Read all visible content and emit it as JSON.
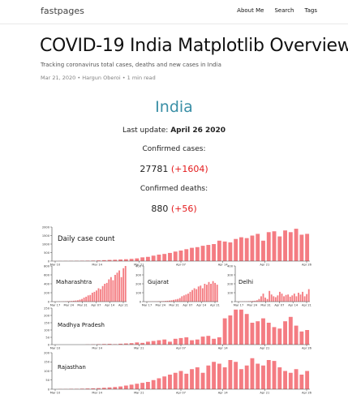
{
  "header": {
    "site_title": "fastpages",
    "nav": [
      "About Me",
      "Search",
      "Tags"
    ]
  },
  "post": {
    "title": "COVID-19 India Matplotlib Overview",
    "description": "Tracking coronavirus total cases, deaths and new cases in India",
    "meta": "Mar 21, 2020 • Hargun Oberoi • 1 min read"
  },
  "summary": {
    "country": "India",
    "last_update_label": "Last update:",
    "last_update_value": "April 26 2020",
    "confirmed_label": "Confirmed cases:",
    "confirmed_value": "27781",
    "confirmed_new": "(+1604)",
    "deaths_label": "Confirmed deaths:",
    "deaths_value": "880",
    "deaths_new": "(+56)"
  },
  "colors": {
    "bar": "#f47c82",
    "accent": "#3a8fa6",
    "new_value": "#e41a1c"
  },
  "chart_data": [
    {
      "type": "bar",
      "title": "Daily case count",
      "x_ticks": [
        "Mar 10",
        "Mar 14",
        "Mar 21",
        "Apr 07",
        "Apr 14",
        "Apr 21",
        "Apr 26"
      ],
      "y_ticks": [
        "0",
        "500",
        "1000",
        "1500",
        "2000"
      ],
      "ylim": [
        0,
        2000
      ],
      "values": [
        5,
        8,
        10,
        12,
        15,
        20,
        25,
        30,
        40,
        55,
        70,
        80,
        95,
        110,
        130,
        160,
        220,
        250,
        320,
        380,
        420,
        480,
        560,
        620,
        700,
        780,
        820,
        900,
        950,
        1000,
        1200,
        1150,
        1100,
        1300,
        1400,
        1350,
        1500,
        1600,
        1200,
        1700,
        1750,
        1450,
        1800,
        1700,
        1900,
        1550,
        1600
      ]
    },
    {
      "type": "bar",
      "title": "Maharashtra",
      "x_ticks": [
        "Mar 17",
        "Mar 24",
        "Mar 31",
        "Apr 07",
        "Apr 14",
        "Apr 21"
      ],
      "y_ticks": [
        "0",
        "200",
        "400",
        "600",
        "800"
      ],
      "ylim": [
        0,
        800
      ],
      "values": [
        2,
        3,
        3,
        5,
        4,
        6,
        8,
        10,
        12,
        15,
        20,
        25,
        30,
        45,
        60,
        90,
        110,
        140,
        150,
        200,
        220,
        250,
        300,
        280,
        350,
        400,
        420,
        500,
        550,
        480,
        600,
        650,
        700,
        550,
        750,
        800
      ]
    },
    {
      "type": "bar",
      "title": "Gujarat",
      "x_ticks": [
        "Mar 17",
        "Mar 24",
        "Mar 31",
        "Apr 07",
        "Apr 14",
        "Apr 21"
      ],
      "y_ticks": [
        "0",
        "100",
        "200",
        "300",
        "400"
      ],
      "ylim": [
        0,
        400
      ],
      "values": [
        1,
        1,
        2,
        2,
        3,
        3,
        4,
        5,
        5,
        6,
        8,
        10,
        12,
        15,
        20,
        25,
        30,
        40,
        60,
        70,
        80,
        90,
        110,
        130,
        150,
        140,
        170,
        180,
        150,
        200,
        190,
        220,
        200,
        230,
        210,
        190
      ]
    },
    {
      "type": "bar",
      "title": "Delhi",
      "x_ticks": [
        "Mar 17",
        "Mar 24",
        "Mar 31",
        "Apr 07",
        "Apr 14",
        "Apr 21"
      ],
      "y_ticks": [
        "0",
        "100",
        "200",
        "300",
        "400"
      ],
      "ylim": [
        0,
        400
      ],
      "values": [
        1,
        1,
        2,
        2,
        3,
        3,
        5,
        6,
        8,
        10,
        15,
        30,
        60,
        90,
        45,
        30,
        120,
        80,
        60,
        50,
        70,
        110,
        90,
        60,
        75,
        80,
        55,
        70,
        90,
        60,
        100,
        80,
        110,
        60,
        85,
        140
      ]
    },
    {
      "type": "bar",
      "title": "Madhya Pradesh",
      "x_ticks": [
        "Mar 10",
        "Mar 14",
        "Mar 21",
        "Apr 07",
        "Apr 14",
        "Apr 21",
        "Apr 26"
      ],
      "y_ticks": [
        "0",
        "50",
        "100",
        "150",
        "200",
        "250"
      ],
      "ylim": [
        0,
        250
      ],
      "values": [
        0,
        0,
        0,
        0,
        0,
        0,
        1,
        2,
        3,
        4,
        5,
        3,
        6,
        8,
        10,
        15,
        12,
        20,
        25,
        30,
        35,
        20,
        40,
        45,
        50,
        30,
        35,
        55,
        60,
        40,
        50,
        180,
        200,
        240,
        240,
        210,
        150,
        160,
        180,
        150,
        120,
        110,
        160,
        190,
        130,
        90,
        100
      ]
    },
    {
      "type": "bar",
      "title": "Rajasthan",
      "x_ticks": [
        "Mar 10",
        "Mar 14",
        "Mar 21",
        "Apr 07",
        "Apr 14",
        "Apr 21",
        "Apr 26"
      ],
      "y_ticks": [
        "0",
        "50",
        "100",
        "150",
        "200"
      ],
      "ylim": [
        0,
        200
      ],
      "values": [
        0,
        1,
        1,
        2,
        2,
        3,
        4,
        5,
        6,
        8,
        10,
        12,
        15,
        20,
        25,
        30,
        35,
        40,
        50,
        60,
        70,
        80,
        90,
        100,
        85,
        110,
        120,
        90,
        130,
        150,
        140,
        120,
        160,
        150,
        110,
        130,
        170,
        140,
        130,
        160,
        155,
        120,
        100,
        90,
        110,
        80,
        100
      ]
    }
  ]
}
